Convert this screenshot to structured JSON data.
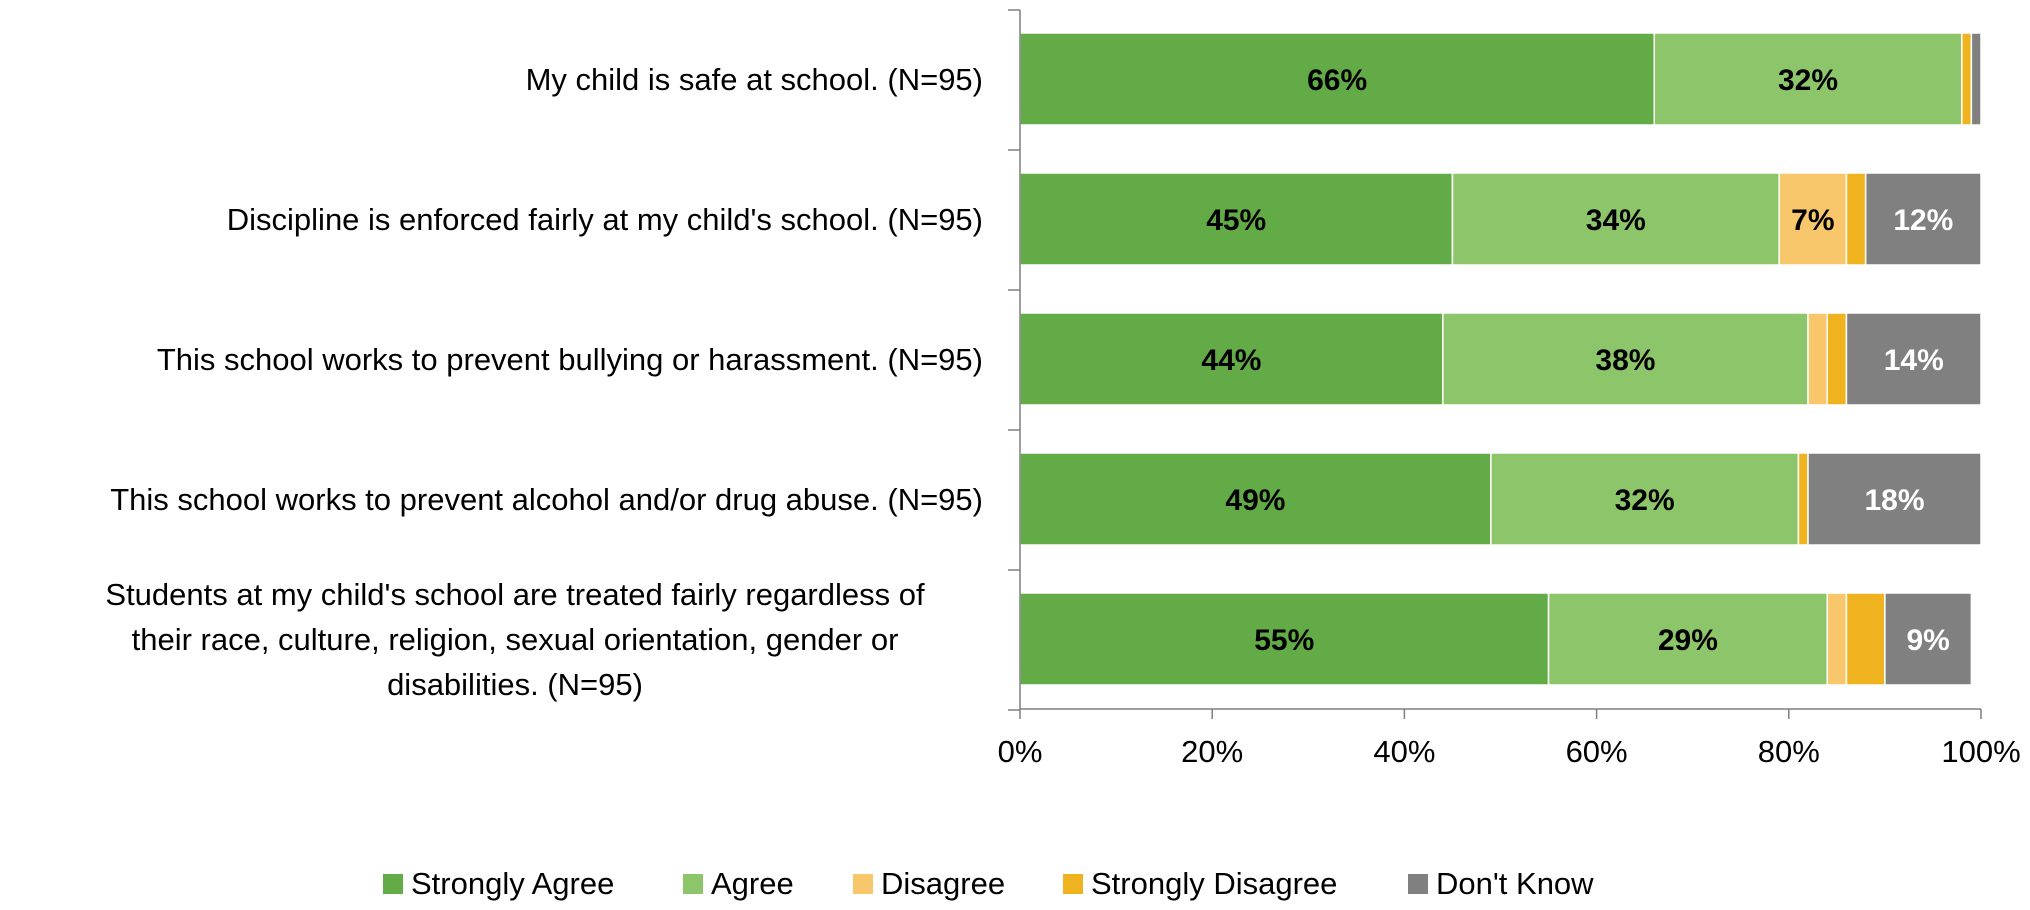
{
  "chart_data": {
    "type": "bar",
    "orientation": "horizontal",
    "stacked": true,
    "categories": [
      "My child is safe at school. (N=95)",
      "Discipline is enforced fairly at my child's school. (N=95)",
      "This school works to prevent bullying or harassment. (N=95)",
      "This school works to prevent alcohol and/or drug abuse. (N=95)",
      "Students at my child's school are treated fairly regardless of their race, culture, religion, sexual orientation, gender or disabilities. (N=95)"
    ],
    "category_lines": [
      [
        "My child is safe at school. (N=95)"
      ],
      [
        "Discipline is enforced fairly at my child's school. (N=95)"
      ],
      [
        "This school works to prevent bullying or harassment. (N=95)"
      ],
      [
        "This school works to prevent alcohol and/or drug abuse. (N=95)"
      ],
      [
        "Students at my child's school are treated fairly regardless of",
        "their race, culture, religion, sexual orientation, gender or",
        "disabilities. (N=95)"
      ]
    ],
    "series": [
      {
        "name": "Strongly Agree",
        "color": "#62ab46",
        "label_color": "#000000",
        "values": [
          66,
          45,
          44,
          49,
          55
        ],
        "labels": [
          "66%",
          "45%",
          "44%",
          "49%",
          "55%"
        ]
      },
      {
        "name": "Agree",
        "color": "#8cc56a",
        "label_color": "#000000",
        "values": [
          32,
          34,
          38,
          32,
          29
        ],
        "labels": [
          "32%",
          "34%",
          "38%",
          "32%",
          "29%"
        ]
      },
      {
        "name": "Disagree",
        "color": "#f8c76b",
        "label_color": "#000000",
        "values": [
          0,
          7,
          2,
          0,
          2
        ],
        "labels": [
          "",
          "7%",
          "",
          "",
          ""
        ]
      },
      {
        "name": "Strongly Disagree",
        "color": "#f0b320",
        "label_color": "#000000",
        "values": [
          1,
          2,
          2,
          1,
          4
        ],
        "labels": [
          "",
          "",
          "",
          "",
          ""
        ]
      },
      {
        "name": "Don't Know",
        "color": "#808080",
        "label_color": "#ffffff",
        "values": [
          1,
          12,
          14,
          18,
          9
        ],
        "labels": [
          "",
          "12%",
          "14%",
          "18%",
          "9%"
        ]
      }
    ],
    "xlim": [
      0,
      100
    ],
    "x_ticks": [
      0,
      20,
      40,
      60,
      80,
      100
    ],
    "x_tick_labels": [
      "0%",
      "20%",
      "40%",
      "60%",
      "80%",
      "100%"
    ],
    "grid": false,
    "legend_position": "bottom"
  }
}
